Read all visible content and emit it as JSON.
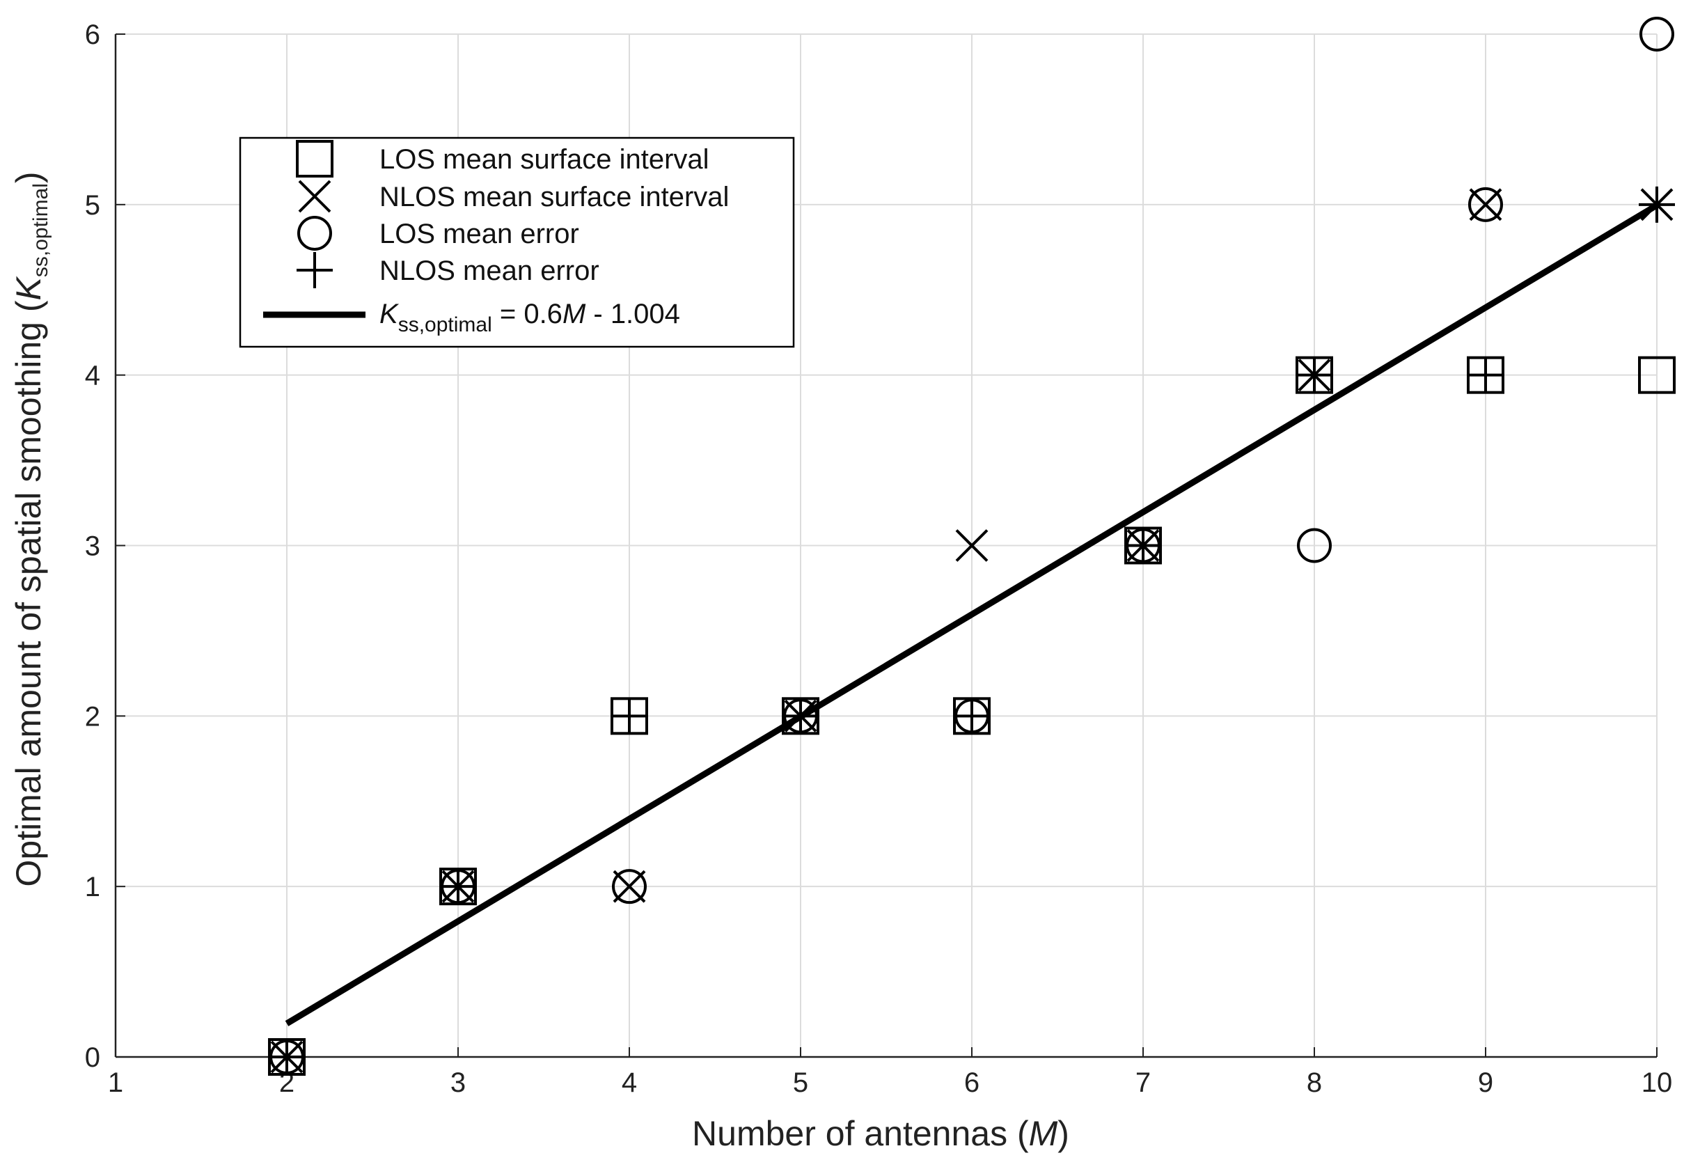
{
  "chart_data": {
    "type": "scatter",
    "xlabel": {
      "main": "Number of antennas (",
      "var": "M",
      "end": ")"
    },
    "ylabel": {
      "main": "Optimal amount of spatial smoothing (",
      "var": "K",
      "sub": "ss,optimal",
      "end": ")"
    },
    "xlim": [
      1,
      10
    ],
    "ylim": [
      0,
      6
    ],
    "x_ticks": [
      1,
      2,
      3,
      4,
      5,
      6,
      7,
      8,
      9,
      10
    ],
    "y_ticks": [
      0,
      1,
      2,
      3,
      4,
      5,
      6
    ],
    "grid": true,
    "legend_position": "top-left",
    "series": [
      {
        "name": "LOS mean surface interval",
        "marker": "square",
        "x": [
          2,
          3,
          4,
          5,
          6,
          7,
          8,
          9,
          10
        ],
        "y": [
          0,
          1,
          2,
          2,
          2,
          3,
          4,
          4,
          4
        ]
      },
      {
        "name": "NLOS mean surface interval",
        "marker": "x",
        "x": [
          2,
          3,
          4,
          5,
          6,
          7,
          8,
          9,
          10
        ],
        "y": [
          0,
          1,
          1,
          2,
          3,
          3,
          4,
          5,
          5
        ]
      },
      {
        "name": "LOS mean error",
        "marker": "circle",
        "x": [
          2,
          3,
          4,
          5,
          6,
          7,
          8,
          9,
          10
        ],
        "y": [
          0,
          1,
          1,
          2,
          2,
          3,
          3,
          5,
          6
        ]
      },
      {
        "name": "NLOS mean error",
        "marker": "plus",
        "x": [
          2,
          3,
          4,
          5,
          6,
          7,
          8,
          9,
          10
        ],
        "y": [
          0,
          1,
          2,
          2,
          2,
          3,
          4,
          4,
          5
        ]
      }
    ],
    "fit_line": {
      "label_var": "K",
      "label_sub": "ss,optimal",
      "label_rest_a": " = 0.6",
      "label_rest_var": "M",
      "label_rest_b": " - 1.004",
      "slope": 0.6,
      "intercept": -1.004,
      "x_range": [
        2,
        10
      ]
    },
    "colors": {
      "marker": "#000000",
      "line": "#000000",
      "grid": "#dcdcdc",
      "axis": "#222222"
    }
  }
}
